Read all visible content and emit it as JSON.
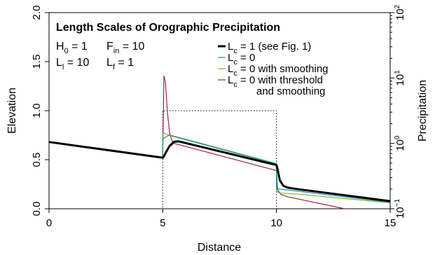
{
  "chart_data": {
    "type": "line",
    "title": "Length Scales of Orographic Precipitation",
    "xlabel": "Distance",
    "ylabel": "Elevation",
    "ylabel_right": "Precipitation",
    "xlim": [
      0,
      15
    ],
    "ylim": [
      0,
      2
    ],
    "ylim_right_log10": [
      -1,
      2
    ],
    "x_ticks": [
      {
        "value": 0,
        "label": "0"
      },
      {
        "value": 5,
        "label": "5"
      },
      {
        "value": 10,
        "label": "10"
      },
      {
        "value": 15,
        "label": "15"
      }
    ],
    "y_ticks": [
      {
        "value": 0,
        "label": "0.0"
      },
      {
        "value": 0.5,
        "label": "0.5"
      },
      {
        "value": 1,
        "label": "1.0"
      },
      {
        "value": 1.5,
        "label": "1.5"
      },
      {
        "value": 2,
        "label": "2.0"
      }
    ],
    "y_right_ticks": [
      {
        "exp": -1,
        "label": "10",
        "sup": "−1"
      },
      {
        "exp": 0,
        "label": "10",
        "sup": "0"
      },
      {
        "exp": 1,
        "label": "10",
        "sup": "1"
      },
      {
        "exp": 2,
        "label": "10",
        "sup": "2"
      }
    ],
    "params": {
      "h0": {
        "main": "H",
        "sub": "0",
        "rest": " = 1"
      },
      "fin": {
        "main": "F",
        "sub": "in",
        "rest": " = 10"
      },
      "ll": {
        "main": "L",
        "sub": "l",
        "rest": " = 10"
      },
      "lf": {
        "main": "L",
        "sub": "f",
        "rest": " = 1"
      }
    },
    "legend": [
      {
        "main": "L",
        "sub": "c",
        "rest": " = 1 (see Fig. 1)",
        "color": "#000000"
      },
      {
        "main": "L",
        "sub": "c",
        "rest": " = 0",
        "color": "#1f8fa8"
      },
      {
        "main": "L",
        "sub": "c",
        "rest": " = 0 with smoothing",
        "color": "#7fb03a"
      },
      {
        "main": "L",
        "sub": "c",
        "rest": " = 0 with threshold",
        "rest2": "and smoothing",
        "color": "#a0223f"
      }
    ],
    "elevation": {
      "x": [
        0,
        5,
        5,
        10,
        10,
        15
      ],
      "y": [
        0,
        0,
        1,
        1,
        0,
        0
      ],
      "color": "#000000",
      "style": "dotted"
    },
    "series": [
      {
        "color": "#000000",
        "points": [
          [
            0,
            0.681
          ],
          [
            5,
            0.521
          ],
          [
            5.05,
            0.535
          ],
          [
            5.15,
            0.58
          ],
          [
            5.3,
            0.64
          ],
          [
            5.5,
            0.683
          ],
          [
            5.7,
            0.687
          ],
          [
            10,
            0.446
          ],
          [
            10.05,
            0.4
          ],
          [
            10.15,
            0.29
          ],
          [
            10.3,
            0.235
          ],
          [
            10.5,
            0.215
          ],
          [
            11,
            0.198
          ],
          [
            15,
            0.078
          ]
        ]
      },
      {
        "color": "#1f8fa8",
        "points": [
          [
            0,
            0.681
          ],
          [
            5,
            0.526
          ],
          [
            5,
            0.715
          ],
          [
            5.3,
            0.752
          ],
          [
            10,
            0.461
          ],
          [
            10,
            0.205
          ],
          [
            11,
            0.178
          ],
          [
            15,
            0.065
          ]
        ]
      },
      {
        "color": "#7fb03a",
        "points": [
          [
            0,
            0.681
          ],
          [
            5,
            0.526
          ],
          [
            5,
            0.78
          ],
          [
            5.1,
            0.766
          ],
          [
            5.4,
            0.74
          ],
          [
            10,
            0.455
          ],
          [
            10,
            0.182
          ],
          [
            10.1,
            0.162
          ],
          [
            10.5,
            0.155
          ],
          [
            11,
            0.148
          ],
          [
            15,
            0.061
          ]
        ]
      },
      {
        "color": "#a0223f",
        "points": [
          [
            0,
            0.681
          ],
          [
            5,
            0.521
          ],
          [
            5.05,
            1.355
          ],
          [
            5.12,
            1.29
          ],
          [
            5.2,
            1.0
          ],
          [
            5.3,
            0.77
          ],
          [
            5.45,
            0.669
          ],
          [
            10,
            0.389
          ],
          [
            10.05,
            0.193
          ],
          [
            10.2,
            0.145
          ],
          [
            10.5,
            0.122
          ],
          [
            13,
            0.0
          ]
        ]
      }
    ]
  }
}
